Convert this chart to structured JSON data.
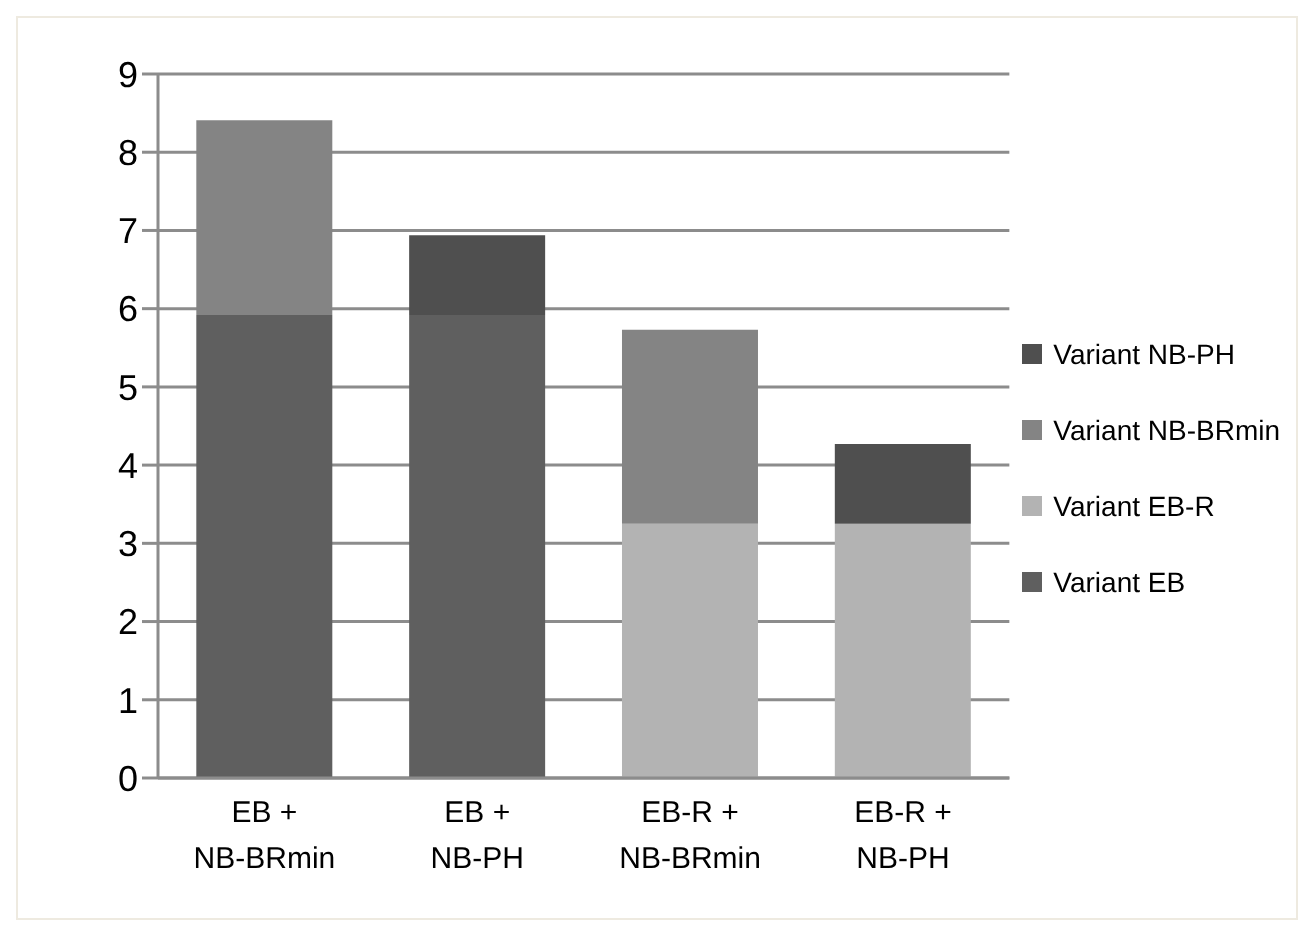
{
  "chart_data": {
    "type": "bar",
    "stacked": true,
    "categories": [
      "EB + NB-BRmin",
      "EB + NB-PH",
      "EB-R + NB-BRmin",
      "EB-R + NB-PH"
    ],
    "series": [
      {
        "name": "Variant EB",
        "color": "#5f5f5f",
        "values": [
          5.92,
          5.92,
          null,
          null
        ]
      },
      {
        "name": "Variant EB-R",
        "color": "#b3b3b3",
        "values": [
          null,
          null,
          3.25,
          3.25
        ]
      },
      {
        "name": "Variant NB-BRmin",
        "color": "#848484",
        "values": [
          2.49,
          null,
          2.48,
          null
        ]
      },
      {
        "name": "Variant NB-PH",
        "color": "#4f4f4f",
        "values": [
          null,
          1.02,
          null,
          1.02
        ]
      }
    ],
    "ylim": [
      0,
      9
    ],
    "yticks": [
      0,
      1,
      2,
      3,
      4,
      5,
      6,
      7,
      8,
      9
    ],
    "grid": "y",
    "legend": "right"
  }
}
